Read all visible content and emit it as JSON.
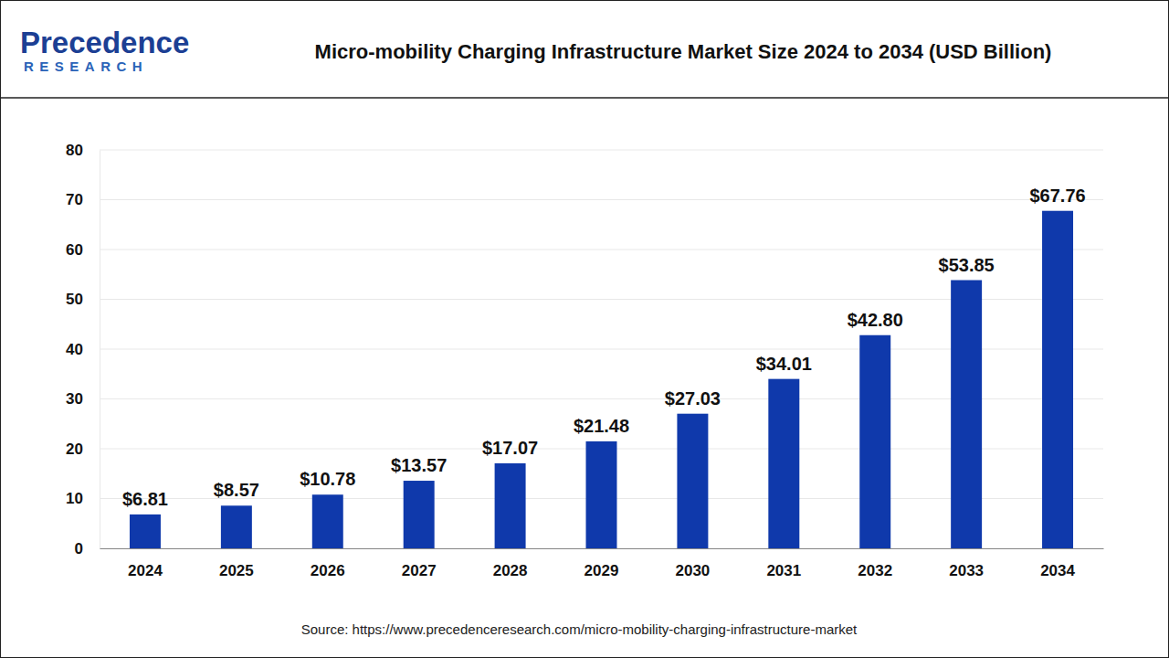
{
  "chart_data": {
    "type": "bar",
    "title": "Micro-mobility Charging Infrastructure Market Size 2024 to 2034 (USD Billion)",
    "categories": [
      "2024",
      "2025",
      "2026",
      "2027",
      "2028",
      "2029",
      "2030",
      "2031",
      "2032",
      "2033",
      "2034"
    ],
    "values": [
      6.81,
      8.57,
      10.78,
      13.57,
      17.07,
      21.48,
      27.03,
      34.01,
      42.8,
      53.85,
      67.76
    ],
    "value_labels": [
      "$6.81",
      "$8.57",
      "$10.78",
      "$13.57",
      "$17.07",
      "$21.48",
      "$27.03",
      "$34.01",
      "$42.80",
      "$53.85",
      "$67.76"
    ],
    "color": "#0f39ab",
    "ylim": [
      0,
      80
    ],
    "yticks": [
      0,
      10,
      20,
      30,
      40,
      50,
      60,
      70,
      80
    ],
    "grid": true,
    "data_labels": true,
    "annotations": [
      "Precedence",
      "RESEARCH",
      "Source: https://www.precedenceresearch.com/micro-mobility-charging-infrastructure-market"
    ]
  }
}
